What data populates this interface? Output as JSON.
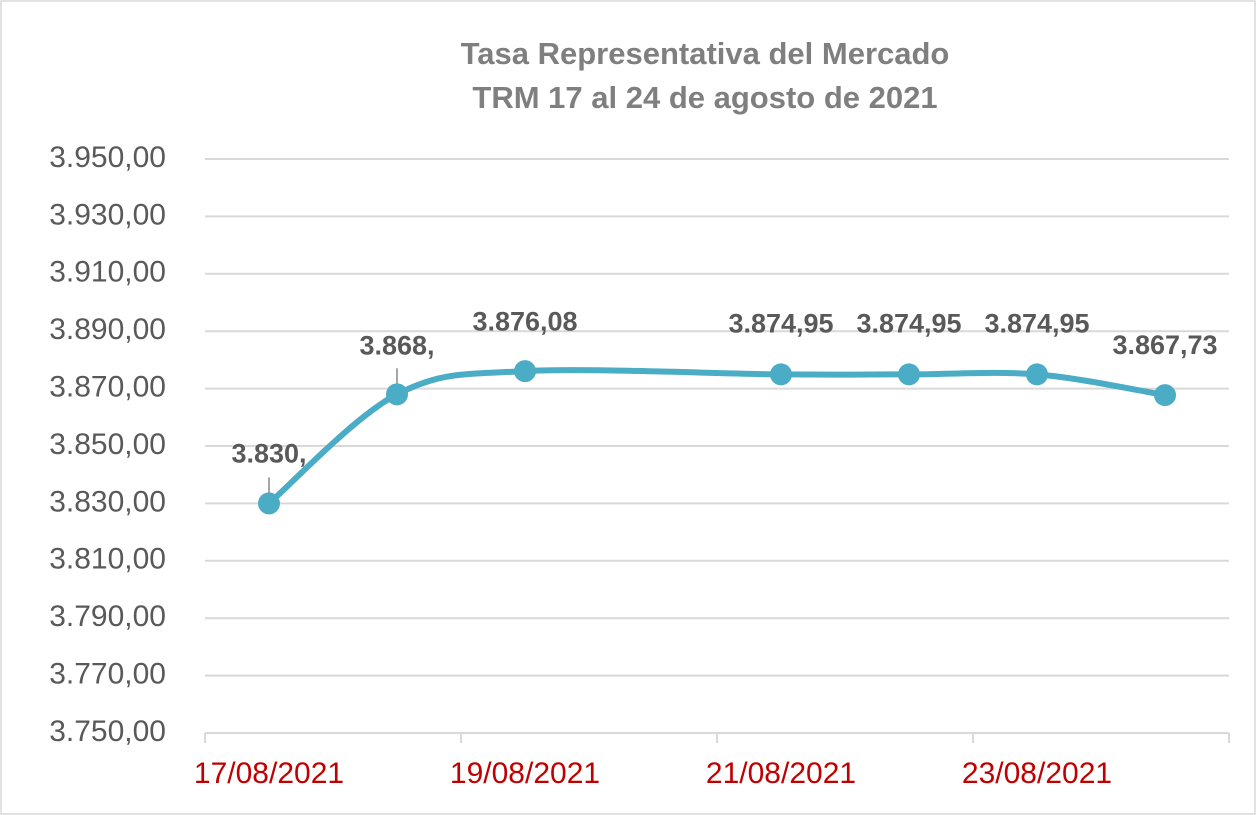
{
  "chart_data": {
    "type": "line",
    "title": "Tasa Representativa del Mercado",
    "subtitle": "TRM 17 al 24 de agosto de 2021",
    "x": [
      "17/08/2021",
      "18/08/2021",
      "19/08/2021",
      "21/08/2021",
      "22/08/2021",
      "23/08/2021",
      "24/08/2021"
    ],
    "values": [
      3830,
      3868,
      3876.08,
      3874.95,
      3874.95,
      3874.95,
      3867.73
    ],
    "value_labels": [
      "3.830,",
      "3.868,",
      "3.876,08",
      "3.874,95",
      "3.874,95",
      "3.874,95",
      "3.867,73"
    ],
    "color": "#4bacc6",
    "xlim": [
      "17/08/2021",
      "25/08/2021"
    ],
    "xticks": [
      "17/08/2021",
      "19/08/2021",
      "21/08/2021",
      "23/08/2021"
    ],
    "ylim": [
      3750,
      3950
    ],
    "yticks": [
      {
        "value": 3750,
        "label": "3.750,00"
      },
      {
        "value": 3770,
        "label": "3.770,00"
      },
      {
        "value": 3790,
        "label": "3.790,00"
      },
      {
        "value": 3810,
        "label": "3.810,00"
      },
      {
        "value": 3830,
        "label": "3.830,00"
      },
      {
        "value": 3850,
        "label": "3.850,00"
      },
      {
        "value": 3870,
        "label": "3.870,00"
      },
      {
        "value": 3890,
        "label": "3.890,00"
      },
      {
        "value": 3910,
        "label": "3.910,00"
      },
      {
        "value": 3930,
        "label": "3.930,00"
      },
      {
        "value": 3950,
        "label": "3.950,00"
      }
    ],
    "grid": true
  }
}
